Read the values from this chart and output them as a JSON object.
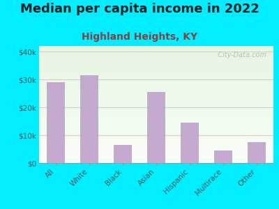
{
  "title": "Median per capita income in 2022",
  "subtitle": "Highland Heights, KY",
  "categories": [
    "All",
    "White",
    "Black",
    "Asian",
    "Hispanic",
    "Multirace",
    "Other"
  ],
  "values": [
    29000,
    31500,
    6500,
    25500,
    14500,
    4500,
    7500
  ],
  "bar_color": "#c4aad0",
  "background_outer": "#00eeff",
  "ylim": [
    0,
    42000
  ],
  "yticks": [
    0,
    10000,
    20000,
    30000,
    40000
  ],
  "ytick_labels": [
    "$0",
    "$10k",
    "$20k",
    "$30k",
    "$40k"
  ],
  "title_fontsize": 13,
  "subtitle_fontsize": 10,
  "watermark": "   City-Data.com",
  "title_color": "#222222",
  "subtitle_color": "#8B4040",
  "grid_color": "#cccccc",
  "tick_color": "#555555",
  "gradient_top": "#e8f5e0",
  "gradient_bottom": "#f8fff8"
}
